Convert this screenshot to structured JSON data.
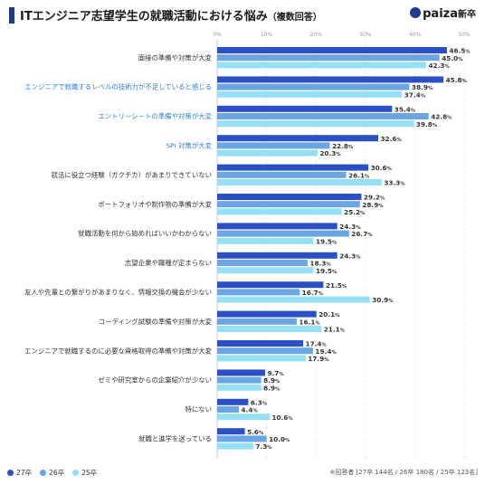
{
  "header": {
    "title": "ITエンジニア志望学生の就職活動における悩み",
    "subtitle": "（複数回答）",
    "logo_text": "paiza",
    "logo_suffix": "新卒"
  },
  "note": "※回答者 [27卒 144名 / 26卒 180名 / 25卒 123名]",
  "colors": {
    "s27": "#2b4fc4",
    "s26": "#6ba6e3",
    "s25": "#96dff4",
    "highlight": "#2f7fd1"
  },
  "chart_data": {
    "type": "bar",
    "orientation": "horizontal",
    "xlim": [
      0,
      50
    ],
    "ticks": [
      "0%",
      "10%",
      "20%",
      "30%",
      "40%",
      "50%"
    ],
    "grid": true,
    "legend_position": "bottom-left",
    "categories": [
      "面接の準備や対策が大変",
      "エンジニアで就職するレベルの技術力が不足していると感じる",
      "エントリーシートの準備や対策が大変",
      "SPI 対策が大変",
      "就活に役立つ経験（ガクチカ）があまりできていない",
      "ポートフォリオや制作物の準備が大変",
      "就職活動を何から始めればいいかわからない",
      "志望企業や職種が定まらない",
      "友人や先輩との繋がりがあまりなく、情報交換の機会が少ない",
      "コーディング試験の準備や対策が大変",
      "エンジニアで就職するのに必要な資格取得の準備や対策が大変",
      "ゼミや研究室からの企業紹介が少ない",
      "特にない",
      "就職と進学を迷っている"
    ],
    "highlighted": [
      1,
      2,
      3
    ],
    "series": [
      {
        "name": "27卒",
        "values": [
          46.5,
          45.8,
          35.4,
          32.6,
          30.6,
          29.2,
          24.3,
          24.3,
          21.5,
          20.1,
          17.4,
          9.7,
          6.3,
          5.6
        ]
      },
      {
        "name": "26卒",
        "values": [
          45.0,
          38.9,
          42.8,
          22.8,
          26.1,
          28.9,
          26.7,
          18.3,
          16.7,
          16.1,
          19.4,
          8.9,
          4.4,
          10.0
        ]
      },
      {
        "name": "25卒",
        "values": [
          42.3,
          37.4,
          39.8,
          20.3,
          33.3,
          25.2,
          19.5,
          19.5,
          30.9,
          21.1,
          17.9,
          8.9,
          10.6,
          7.3
        ]
      }
    ]
  }
}
